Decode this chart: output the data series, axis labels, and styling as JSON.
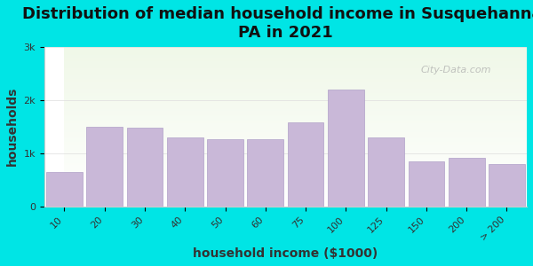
{
  "title": "Distribution of median household income in Susquehanna,\nPA in 2021",
  "xlabel": "household income ($1000)",
  "ylabel": "households",
  "categories": [
    "10",
    "20",
    "30",
    "40",
    "50",
    "60",
    "75",
    "100",
    "125",
    "150",
    "200",
    "> 200"
  ],
  "values": [
    650,
    1500,
    1480,
    1300,
    1270,
    1270,
    1580,
    2200,
    1300,
    850,
    920,
    800
  ],
  "bar_color": "#c9b8d8",
  "bar_edge_color": "#b0a0c8",
  "background_color": "#00e5e5",
  "plot_bg_top": "#f0f8e8",
  "plot_bg_bottom": "#ffffff",
  "ylim": [
    0,
    3000
  ],
  "yticks": [
    0,
    1000,
    2000,
    3000
  ],
  "ytick_labels": [
    "0",
    "1k",
    "2k",
    "3k"
  ],
  "watermark": "City-Data.com",
  "title_fontsize": 13,
  "axis_label_fontsize": 10,
  "tick_fontsize": 8
}
